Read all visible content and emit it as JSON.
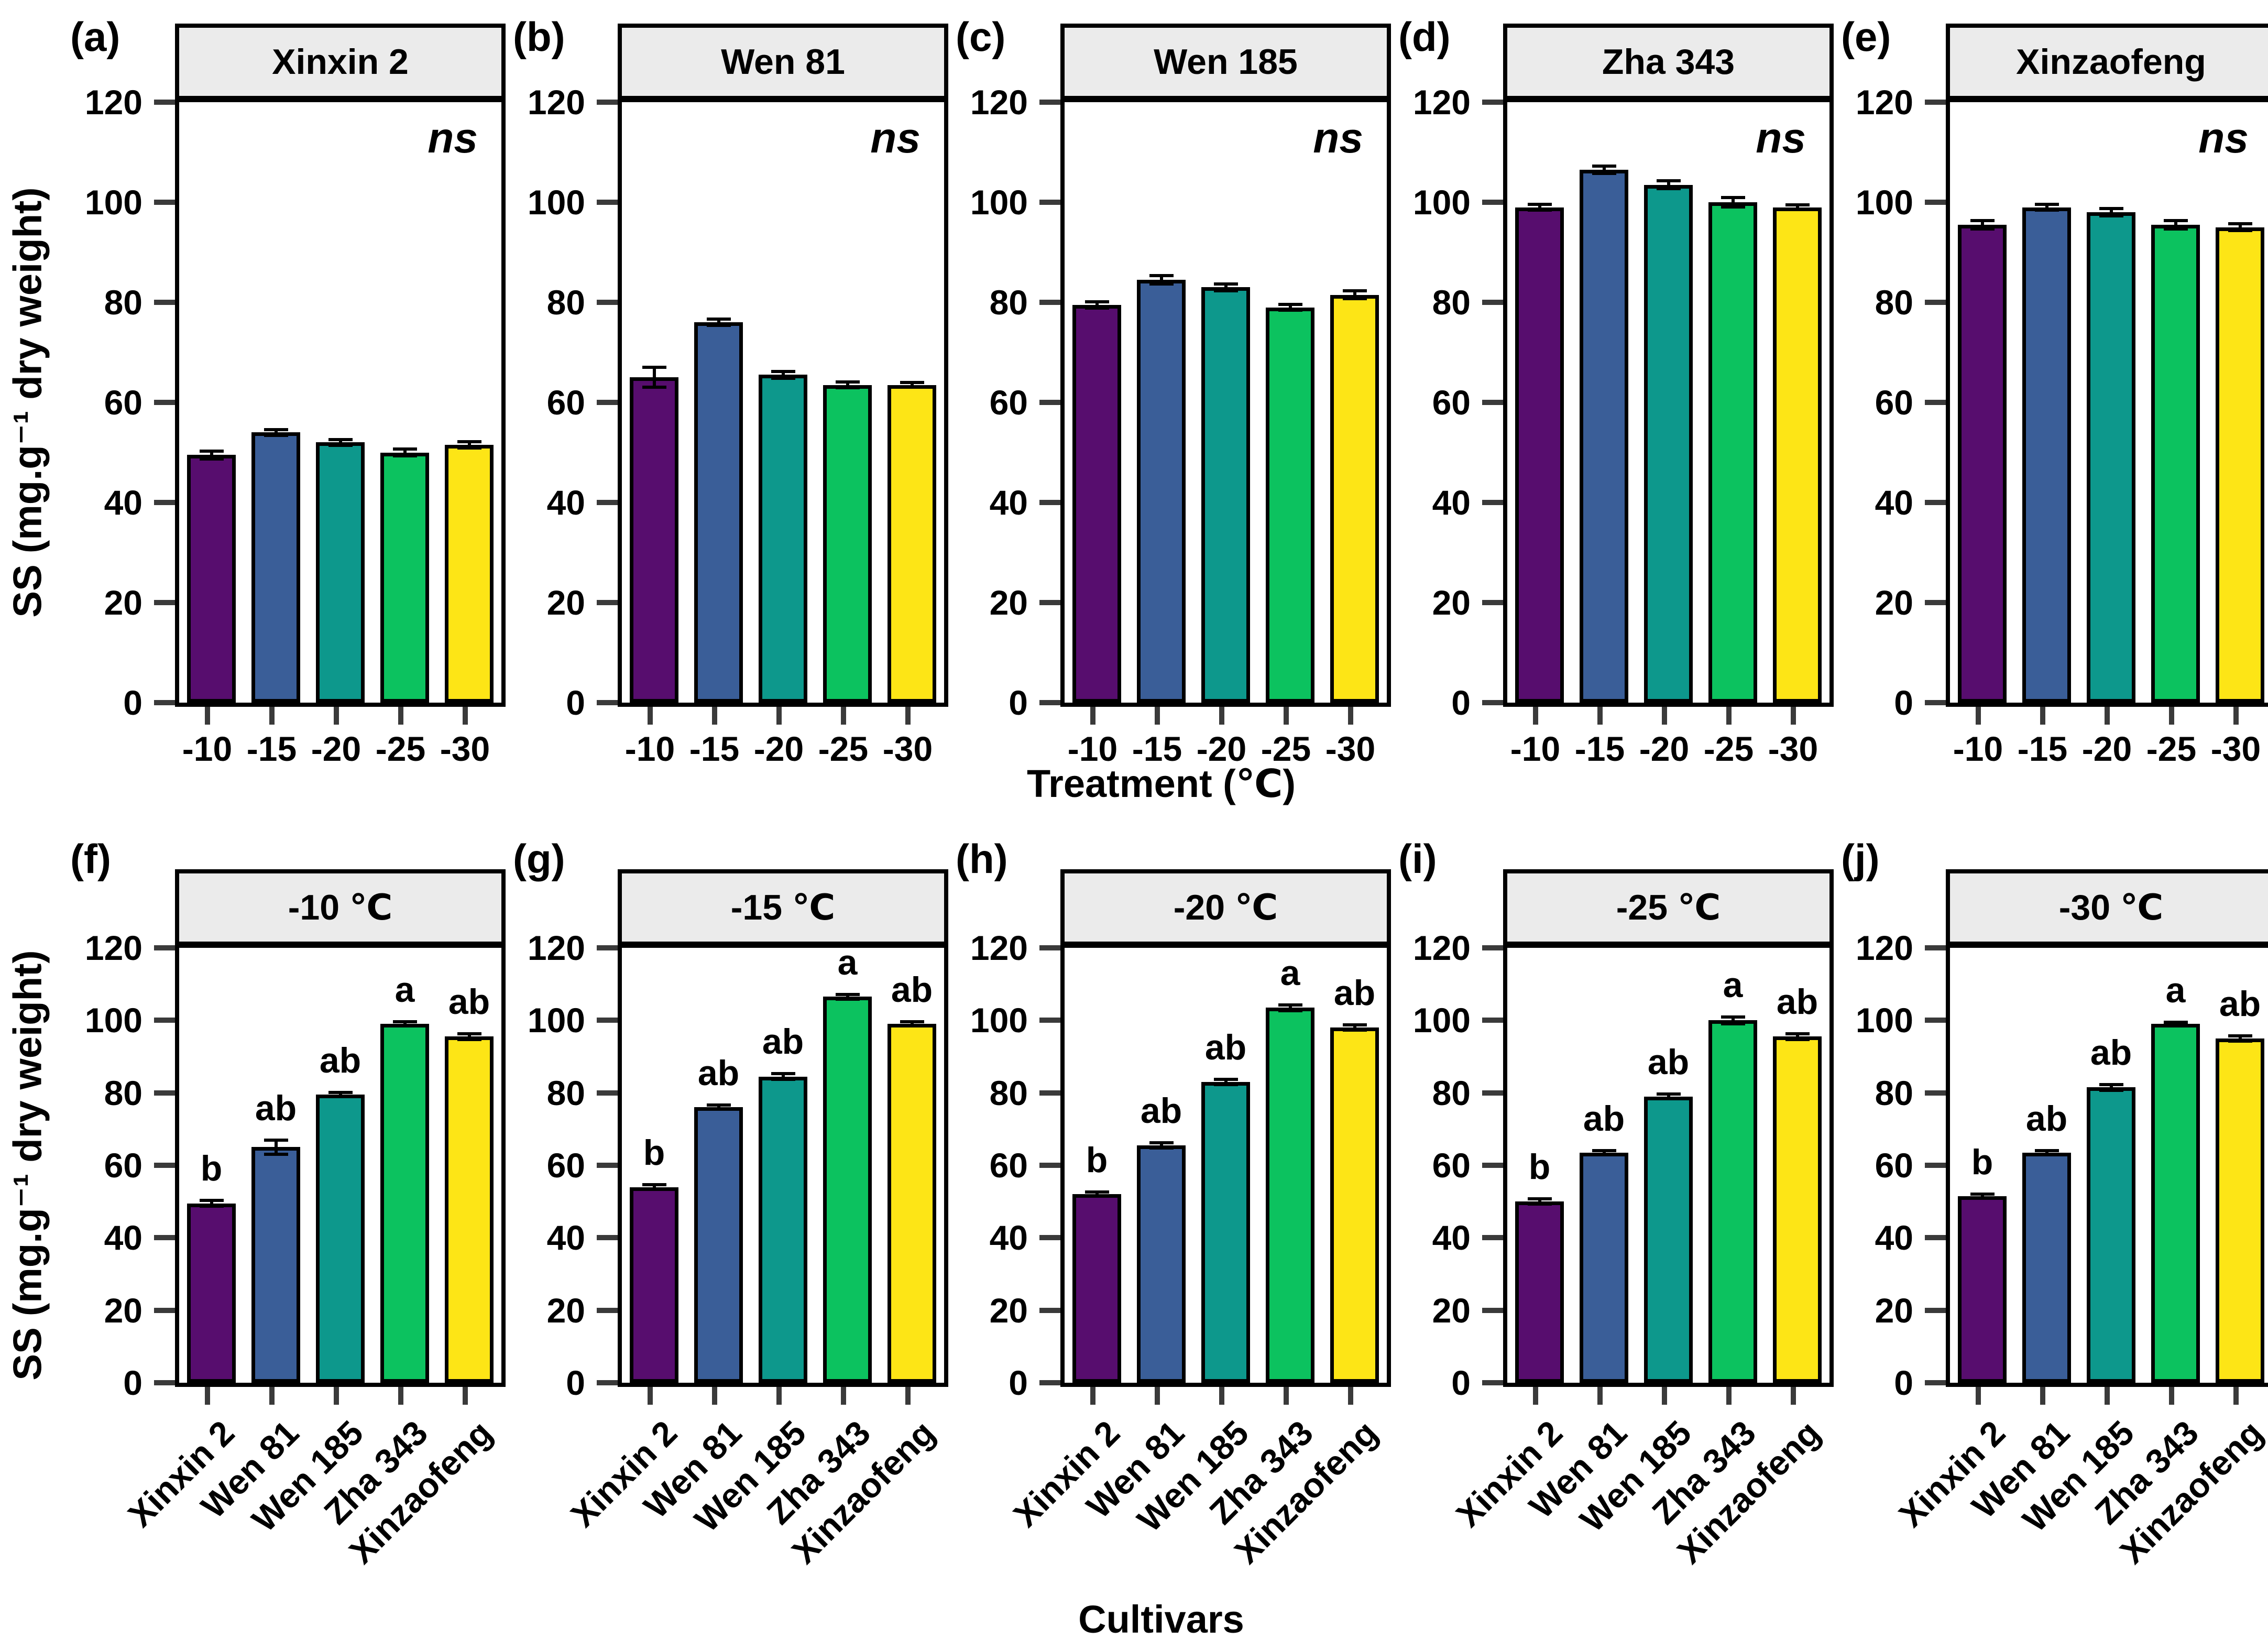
{
  "axes": {
    "y_label": "SS (mg.g⁻¹ dry weight)",
    "top_x_label": "Treatment (℃)",
    "bottom_x_label": "Cultivars",
    "y_ticks": [
      0,
      20,
      40,
      60,
      80,
      100,
      120
    ],
    "ylim": [
      0,
      120
    ]
  },
  "colors": {
    "bar_palette": [
      "#570d6e",
      "#3a5e98",
      "#0d988c",
      "#0cc25f",
      "#fde516"
    ],
    "strip_bg": "#ebebeb",
    "axis_line": "#000000",
    "tick_mark": "#3a3a3a"
  },
  "cultivars": [
    "Xinxin 2",
    "Wen 81",
    "Wen 185",
    "Zha 343",
    "Xinzaofeng"
  ],
  "treatments": [
    "-10",
    "-15",
    "-20",
    "-25",
    "-30"
  ],
  "chart_data": [
    {
      "type": "bar",
      "panel": "a",
      "row": "top",
      "title": "Xinxin 2",
      "annotation": "ns",
      "categories": [
        "-10",
        "-15",
        "-20",
        "-25",
        "-30"
      ],
      "values": [
        49.5,
        54,
        52,
        50,
        51.5
      ],
      "errors": [
        0.8,
        0.6,
        0.6,
        0.7,
        0.6
      ],
      "ylim": [
        0,
        120
      ]
    },
    {
      "type": "bar",
      "panel": "b",
      "row": "top",
      "title": "Wen 81",
      "annotation": "ns",
      "categories": [
        "-10",
        "-15",
        "-20",
        "-25",
        "-30"
      ],
      "values": [
        65,
        76,
        65.5,
        63.5,
        63.5
      ],
      "errors": [
        2,
        0.6,
        0.7,
        0.6,
        0.5
      ],
      "ylim": [
        0,
        120
      ]
    },
    {
      "type": "bar",
      "panel": "c",
      "row": "top",
      "title": "Wen 185",
      "annotation": "ns",
      "categories": [
        "-10",
        "-15",
        "-20",
        "-25",
        "-30"
      ],
      "values": [
        79.5,
        84.5,
        83,
        79,
        81.5
      ],
      "errors": [
        0.6,
        0.8,
        0.7,
        0.6,
        0.8
      ],
      "ylim": [
        0,
        120
      ]
    },
    {
      "type": "bar",
      "panel": "d",
      "row": "top",
      "title": "Zha 343",
      "annotation": "ns",
      "categories": [
        "-10",
        "-15",
        "-20",
        "-25",
        "-30"
      ],
      "values": [
        99,
        106.5,
        103.5,
        100,
        99
      ],
      "errors": [
        0.6,
        0.7,
        0.8,
        0.9,
        0.5
      ],
      "ylim": [
        0,
        120
      ]
    },
    {
      "type": "bar",
      "panel": "e",
      "row": "top",
      "title": "Xinzaofeng",
      "annotation": "ns",
      "categories": [
        "-10",
        "-15",
        "-20",
        "-25",
        "-30"
      ],
      "values": [
        95.5,
        99,
        98,
        95.5,
        95
      ],
      "errors": [
        0.8,
        0.6,
        0.7,
        0.8,
        0.7
      ],
      "ylim": [
        0,
        120
      ]
    },
    {
      "type": "bar",
      "panel": "f",
      "row": "bottom",
      "title": "-10 ℃",
      "categories": [
        "Xinxin 2",
        "Wen 81",
        "Wen 185",
        "Zha 343",
        "Xinzaofeng"
      ],
      "values": [
        49.5,
        65,
        79.5,
        99,
        95.5
      ],
      "errors": [
        0.8,
        2,
        0.6,
        0.6,
        0.8
      ],
      "letters": [
        "b",
        "ab",
        "ab",
        "a",
        "ab"
      ],
      "ylim": [
        0,
        120
      ]
    },
    {
      "type": "bar",
      "panel": "g",
      "row": "bottom",
      "title": "-15 ℃",
      "categories": [
        "Xinxin 2",
        "Wen 81",
        "Wen 185",
        "Zha 343",
        "Xinzaofeng"
      ],
      "values": [
        54,
        76,
        84.5,
        106.5,
        99
      ],
      "errors": [
        0.6,
        0.6,
        0.8,
        0.7,
        0.6
      ],
      "letters": [
        "b",
        "ab",
        "ab",
        "a",
        "ab"
      ],
      "ylim": [
        0,
        120
      ]
    },
    {
      "type": "bar",
      "panel": "h",
      "row": "bottom",
      "title": "-20 ℃",
      "categories": [
        "Xinxin 2",
        "Wen 81",
        "Wen 185",
        "Zha 343",
        "Xinzaofeng"
      ],
      "values": [
        52,
        65.5,
        83,
        103.5,
        98
      ],
      "errors": [
        0.6,
        0.7,
        0.7,
        0.8,
        0.7
      ],
      "letters": [
        "b",
        "ab",
        "ab",
        "a",
        "ab"
      ],
      "ylim": [
        0,
        120
      ]
    },
    {
      "type": "bar",
      "panel": "i",
      "row": "bottom",
      "title": "-25 ℃",
      "categories": [
        "Xinxin 2",
        "Wen 81",
        "Wen 185",
        "Zha 343",
        "Xinzaofeng"
      ],
      "values": [
        50,
        63.5,
        79,
        100,
        95.5
      ],
      "errors": [
        0.7,
        0.6,
        0.6,
        0.9,
        0.8
      ],
      "letters": [
        "b",
        "ab",
        "ab",
        "a",
        "ab"
      ],
      "ylim": [
        0,
        120
      ]
    },
    {
      "type": "bar",
      "panel": "j",
      "row": "bottom",
      "title": "-30 ℃",
      "categories": [
        "Xinxin 2",
        "Wen 81",
        "Wen 185",
        "Zha 343",
        "Xinzaofeng"
      ],
      "values": [
        51.5,
        63.5,
        81.5,
        99,
        95
      ],
      "errors": [
        0.6,
        0.5,
        0.8,
        0.5,
        0.7
      ],
      "letters": [
        "b",
        "ab",
        "ab",
        "a",
        "ab"
      ],
      "ylim": [
        0,
        120
      ]
    }
  ]
}
